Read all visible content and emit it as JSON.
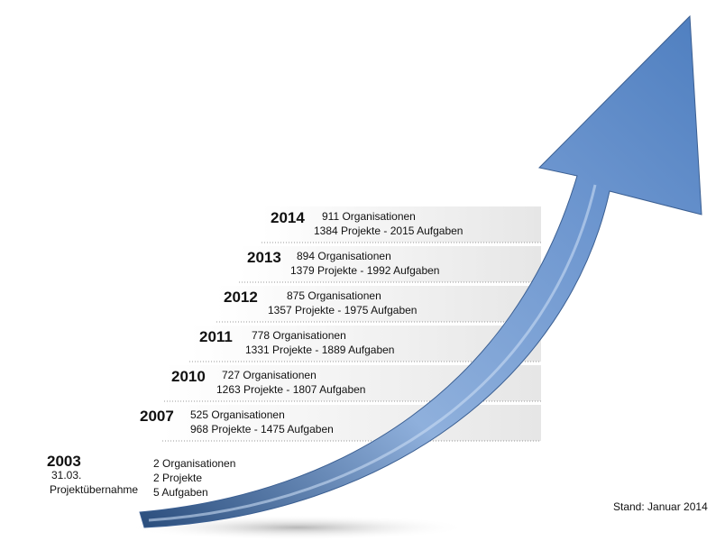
{
  "milestones": [
    {
      "year": "2014",
      "line1": "911 Organisationen",
      "line2": "1384 Projekte - 2015 Aufgaben"
    },
    {
      "year": "2013",
      "line1": "894 Organisationen",
      "line2": "1379 Projekte - 1992 Aufgaben"
    },
    {
      "year": "2012",
      "line1": "875 Organisationen",
      "line2": "1357 Projekte - 1975 Aufgaben"
    },
    {
      "year": "2011",
      "line1": "778 Organisationen",
      "line2": "1331 Projekte - 1889 Aufgaben"
    },
    {
      "year": "2010",
      "line1": "727 Organisationen",
      "line2": "1263 Projekte - 1807 Aufgaben"
    },
    {
      "year": "2007",
      "line1": "525 Organisationen",
      "line2": "968 Projekte - 1475 Aufgaben"
    }
  ],
  "start": {
    "year": "2003",
    "date": "31.03.",
    "label": "Projektübernahme",
    "stats": [
      "2 Organisationen",
      "2 Projekte",
      "5 Aufgaben"
    ]
  },
  "footnote": "Stand: Januar 2014"
}
